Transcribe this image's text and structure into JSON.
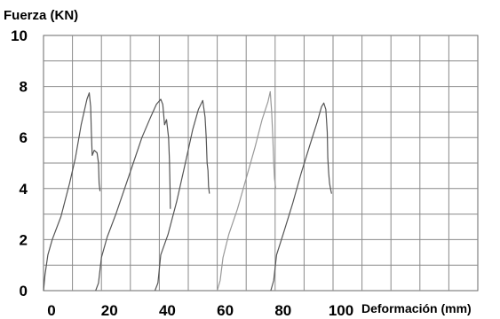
{
  "chart_data": {
    "type": "line",
    "title": "",
    "ylabel": "Fuerza (KN)",
    "xlabel": "Deformación (mm)",
    "xlim": [
      0,
      150
    ],
    "ylim": [
      0,
      10
    ],
    "grid": true,
    "x_ticks": [
      "0",
      "20",
      "40",
      "60",
      "80",
      "100"
    ],
    "y_ticks": [
      "0",
      "2",
      "4",
      "6",
      "8",
      "10"
    ],
    "series": [
      {
        "color": "#555555",
        "points": [
          [
            0,
            0
          ],
          [
            0.5,
            0.6
          ],
          [
            1.5,
            1.4
          ],
          [
            3,
            2
          ],
          [
            6,
            2.9
          ],
          [
            9,
            4.2
          ],
          [
            11,
            5.2
          ],
          [
            13,
            6.5
          ],
          [
            15,
            7.5
          ],
          [
            15.8,
            7.75
          ],
          [
            16.3,
            7.2
          ],
          [
            16.5,
            6.3
          ],
          [
            16.8,
            5.3
          ],
          [
            17.5,
            5.5
          ],
          [
            18.5,
            5.4
          ],
          [
            19,
            5.0
          ],
          [
            19.2,
            4.2
          ],
          [
            19.5,
            3.9
          ]
        ]
      },
      {
        "color": "#555555",
        "points": [
          [
            18,
            0
          ],
          [
            19,
            0.3
          ],
          [
            20,
            1.3
          ],
          [
            22,
            2.1
          ],
          [
            25,
            3.0
          ],
          [
            28,
            4.0
          ],
          [
            31,
            5.0
          ],
          [
            34,
            6.0
          ],
          [
            37,
            6.8
          ],
          [
            39,
            7.3
          ],
          [
            40.5,
            7.5
          ],
          [
            41.2,
            7.3
          ],
          [
            41.8,
            6.5
          ],
          [
            42.5,
            6.7
          ],
          [
            43.2,
            6.0
          ],
          [
            43.5,
            5.1
          ],
          [
            43.7,
            4.0
          ],
          [
            43.8,
            3.2
          ]
        ]
      },
      {
        "color": "#555555",
        "points": [
          [
            38.5,
            0
          ],
          [
            39.5,
            0.3
          ],
          [
            40.5,
            1.4
          ],
          [
            43,
            2.2
          ],
          [
            46,
            3.5
          ],
          [
            49,
            5.0
          ],
          [
            51.5,
            6.3
          ],
          [
            53.5,
            7.1
          ],
          [
            55,
            7.45
          ],
          [
            55.8,
            6.8
          ],
          [
            56.2,
            6.0
          ],
          [
            56.5,
            5.0
          ],
          [
            56.8,
            4.7
          ],
          [
            57,
            4.1
          ],
          [
            57.3,
            3.8
          ]
        ]
      },
      {
        "color": "#999999",
        "points": [
          [
            60,
            0
          ],
          [
            61,
            0.4
          ],
          [
            62,
            1.3
          ],
          [
            64,
            2.2
          ],
          [
            67,
            3.2
          ],
          [
            70,
            4.4
          ],
          [
            73,
            5.6
          ],
          [
            75.5,
            6.7
          ],
          [
            77.5,
            7.4
          ],
          [
            78.3,
            7.8
          ],
          [
            78.8,
            7.0
          ],
          [
            79.2,
            6.0
          ],
          [
            79.5,
            5.0
          ],
          [
            79.8,
            4.4
          ],
          [
            80.2,
            4.0
          ]
        ]
      },
      {
        "color": "#555555",
        "points": [
          [
            78.5,
            0
          ],
          [
            79.5,
            0.4
          ],
          [
            80.5,
            1.4
          ],
          [
            83,
            2.3
          ],
          [
            86,
            3.4
          ],
          [
            89,
            4.6
          ],
          [
            92,
            5.7
          ],
          [
            94.5,
            6.6
          ],
          [
            96,
            7.2
          ],
          [
            96.8,
            7.35
          ],
          [
            97.5,
            7.1
          ],
          [
            98,
            6.2
          ],
          [
            98.2,
            5.2
          ],
          [
            98.5,
            4.6
          ],
          [
            98.8,
            4.2
          ],
          [
            99.2,
            3.95
          ],
          [
            99.5,
            3.8
          ]
        ]
      }
    ]
  }
}
